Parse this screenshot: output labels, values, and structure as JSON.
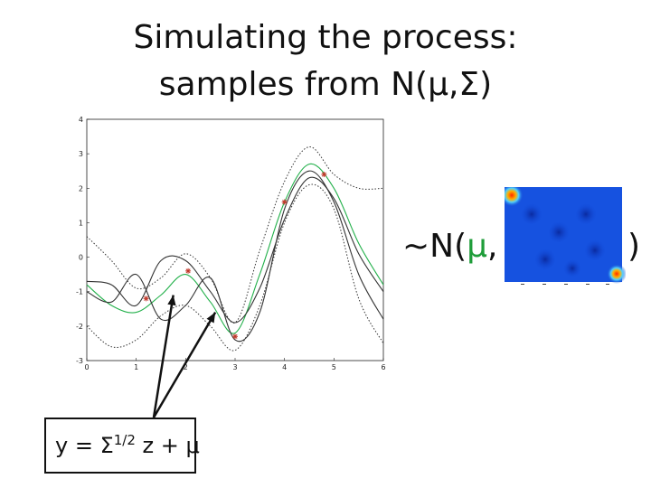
{
  "title_line1": "Simulating the process:",
  "title_line2": "samples from N(μ,Σ)",
  "distribution": {
    "prefix": "~N(",
    "mu": "μ",
    "comma": ",",
    "suffix": ")"
  },
  "equation": {
    "lhs": "y = Σ",
    "exponent": "1/2",
    "rhs": " z + μ"
  },
  "colors": {
    "mean": "#22b04a",
    "sample": "#333333",
    "bound": "#333333",
    "observation": "#c0392b",
    "mu_text": "#1f9d3a"
  },
  "chart_data": {
    "type": "line",
    "xlim": [
      0,
      6
    ],
    "ylim": [
      -3,
      4
    ],
    "xticks": [
      0,
      1,
      2,
      3,
      4,
      5,
      6
    ],
    "yticks": [
      -3,
      -2,
      -1,
      0,
      1,
      2,
      3,
      4
    ],
    "grid": false,
    "x": [
      0,
      0.5,
      1,
      1.5,
      2,
      2.5,
      3,
      3.5,
      4,
      4.5,
      5,
      5.5,
      6
    ],
    "series": [
      {
        "role": "mean",
        "values": [
          -0.8,
          -1.4,
          -1.6,
          -1.1,
          -0.5,
          -1.3,
          -2.2,
          -0.5,
          1.6,
          2.7,
          2.0,
          0.4,
          -0.8
        ]
      },
      {
        "role": "sample",
        "values": [
          -0.7,
          -0.8,
          -1.4,
          -0.1,
          -0.1,
          -1.0,
          -1.9,
          -0.9,
          1.1,
          2.3,
          1.7,
          0.1,
          -1.0
        ]
      },
      {
        "role": "sample",
        "values": [
          -1.0,
          -1.3,
          -0.5,
          -1.8,
          -1.4,
          -0.6,
          -2.4,
          -1.6,
          1.4,
          2.5,
          1.6,
          -0.5,
          -1.8
        ]
      },
      {
        "role": "bound",
        "values": [
          0.6,
          -0.1,
          -0.9,
          -0.6,
          0.1,
          -0.6,
          -1.9,
          0.2,
          2.2,
          3.2,
          2.4,
          2.0,
          2.0
        ]
      },
      {
        "role": "bound",
        "values": [
          -2.0,
          -2.6,
          -2.4,
          -1.7,
          -1.4,
          -2.0,
          -2.7,
          -1.4,
          1.0,
          2.1,
          1.4,
          -1.2,
          -2.5
        ]
      }
    ],
    "observations": [
      {
        "x": 1.2,
        "y": -1.2
      },
      {
        "x": 2.05,
        "y": -0.4
      },
      {
        "x": 3.0,
        "y": -2.3
      },
      {
        "x": 4.0,
        "y": 1.6
      },
      {
        "x": 4.8,
        "y": 2.4
      }
    ],
    "arrow_targets": [
      {
        "x": 1.75,
        "y": -1.1
      },
      {
        "x": 2.6,
        "y": -1.6
      }
    ]
  }
}
